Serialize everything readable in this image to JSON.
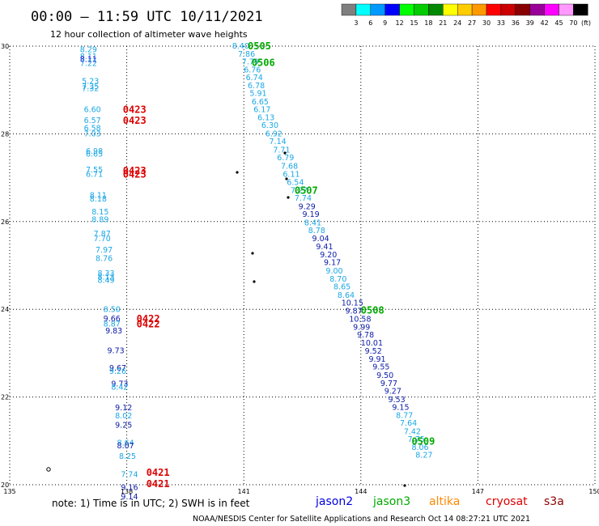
{
  "title": "00:00 – 11:59 UTC 10/11/2021",
  "subtitle": "12 hour collection of altimeter wave heights",
  "colorbar": {
    "labels": [
      "3",
      "6",
      "9",
      "12",
      "15",
      "18",
      "21",
      "24",
      "27",
      "30",
      "33",
      "36",
      "39",
      "42",
      "45",
      "70"
    ],
    "unit": "(ft)",
    "colors": [
      "#7f7f7f",
      "#00ffff",
      "#0099ff",
      "#0000ff",
      "#00ff00",
      "#00cc00",
      "#008800",
      "#ffff00",
      "#ffcc00",
      "#ff9900",
      "#ff0000",
      "#cc0000",
      "#880000",
      "#990099",
      "#ff00ff",
      "#ff99ff",
      "#000000"
    ]
  },
  "chart_data": {
    "type": "scatter",
    "title": "00:00 – 11:59 UTC 10/11/2021",
    "subtitle": "12 hour collection of altimeter wave heights",
    "xlim": [
      135,
      150
    ],
    "ylim": [
      20,
      30
    ],
    "x_ticks": [
      "135",
      "138",
      "141",
      "144",
      "147",
      "150"
    ],
    "y_ticks": [
      "20",
      "22",
      "24",
      "26",
      "28",
      "30"
    ],
    "grid": true,
    "level_colors": {
      "c6": "#1aa7e6",
      "c9": "#0a1aa8",
      "c12": "#0000dd"
    },
    "series": [
      {
        "name": "jason2",
        "color": "#0000dd",
        "points": []
      },
      {
        "name": "jason3",
        "color": "#00aa00",
        "passes": [
          {
            "label": "0505",
            "x": 141.1,
            "y": 30.0
          },
          {
            "label": "0506",
            "x": 141.2,
            "y": 29.62
          },
          {
            "label": "0507",
            "x": 142.3,
            "y": 26.71
          },
          {
            "label": "0508",
            "x": 144.0,
            "y": 23.98
          },
          {
            "label": "0509",
            "x": 145.3,
            "y": 20.99
          }
        ],
        "points": [
          {
            "x": 140.7,
            "y": 30.0,
            "v": "8.40",
            "c": "c6"
          },
          {
            "x": 140.85,
            "y": 29.82,
            "v": "7.86",
            "c": "c6"
          },
          {
            "x": 140.95,
            "y": 29.64,
            "v": "7.79",
            "c": "c6"
          },
          {
            "x": 141.0,
            "y": 29.46,
            "v": "6.76",
            "c": "c6"
          },
          {
            "x": 141.05,
            "y": 29.28,
            "v": "6.74",
            "c": "c6"
          },
          {
            "x": 141.1,
            "y": 29.1,
            "v": "6.78",
            "c": "c6"
          },
          {
            "x": 141.15,
            "y": 28.92,
            "v": "5.91",
            "c": "c6"
          },
          {
            "x": 141.2,
            "y": 28.73,
            "v": "6.65",
            "c": "c6"
          },
          {
            "x": 141.25,
            "y": 28.55,
            "v": "6.17",
            "c": "c6"
          },
          {
            "x": 141.35,
            "y": 28.37,
            "v": "6.13",
            "c": "c6"
          },
          {
            "x": 141.45,
            "y": 28.19,
            "v": "6.30",
            "c": "c6"
          },
          {
            "x": 141.55,
            "y": 28.0,
            "v": "6.92",
            "c": "c6"
          },
          {
            "x": 141.65,
            "y": 27.82,
            "v": "7.14",
            "c": "c6"
          },
          {
            "x": 141.75,
            "y": 27.63,
            "v": "7.71",
            "c": "c6"
          },
          {
            "x": 141.85,
            "y": 27.45,
            "v": "6.79",
            "c": "c6"
          },
          {
            "x": 141.95,
            "y": 27.26,
            "v": "7.68",
            "c": "c6"
          },
          {
            "x": 142.0,
            "y": 27.08,
            "v": "6.11",
            "c": "c6"
          },
          {
            "x": 142.1,
            "y": 26.89,
            "v": "6.54",
            "c": "c6"
          },
          {
            "x": 142.2,
            "y": 26.71,
            "v": "7.27",
            "c": "c6"
          },
          {
            "x": 142.3,
            "y": 26.53,
            "v": "7.74",
            "c": "c6"
          },
          {
            "x": 142.4,
            "y": 26.34,
            "v": "9.29",
            "c": "c9"
          },
          {
            "x": 142.5,
            "y": 26.16,
            "v": "9.19",
            "c": "c9"
          },
          {
            "x": 142.55,
            "y": 25.97,
            "v": "8.41",
            "c": "c6"
          },
          {
            "x": 142.65,
            "y": 25.79,
            "v": "8.78",
            "c": "c6"
          },
          {
            "x": 142.75,
            "y": 25.61,
            "v": "9.04",
            "c": "c9"
          },
          {
            "x": 142.85,
            "y": 25.42,
            "v": "9.41",
            "c": "c9"
          },
          {
            "x": 142.95,
            "y": 25.24,
            "v": "9.20",
            "c": "c9"
          },
          {
            "x": 143.05,
            "y": 25.06,
            "v": "9.17",
            "c": "c9"
          },
          {
            "x": 143.1,
            "y": 24.87,
            "v": "9.00",
            "c": "c6"
          },
          {
            "x": 143.2,
            "y": 24.69,
            "v": "8.70",
            "c": "c6"
          },
          {
            "x": 143.3,
            "y": 24.51,
            "v": "8.65",
            "c": "c6"
          },
          {
            "x": 143.4,
            "y": 24.32,
            "v": "8.64",
            "c": "c6"
          },
          {
            "x": 143.5,
            "y": 24.14,
            "v": "10.15",
            "c": "c9"
          },
          {
            "x": 143.6,
            "y": 23.96,
            "v": "9.87",
            "c": "c9"
          },
          {
            "x": 143.7,
            "y": 23.77,
            "v": "10.58",
            "c": "c9"
          },
          {
            "x": 143.8,
            "y": 23.59,
            "v": "9.99",
            "c": "c9"
          },
          {
            "x": 143.9,
            "y": 23.41,
            "v": "9.78",
            "c": "c9"
          },
          {
            "x": 144.0,
            "y": 23.23,
            "v": "10.01",
            "c": "c9"
          },
          {
            "x": 144.1,
            "y": 23.04,
            "v": "9.52",
            "c": "c9"
          },
          {
            "x": 144.2,
            "y": 22.86,
            "v": "9.91",
            "c": "c9"
          },
          {
            "x": 144.3,
            "y": 22.68,
            "v": "9.55",
            "c": "c9"
          },
          {
            "x": 144.4,
            "y": 22.49,
            "v": "9.50",
            "c": "c9"
          },
          {
            "x": 144.5,
            "y": 22.31,
            "v": "9.77",
            "c": "c9"
          },
          {
            "x": 144.6,
            "y": 22.13,
            "v": "9.27",
            "c": "c9"
          },
          {
            "x": 144.7,
            "y": 21.94,
            "v": "9.53",
            "c": "c9"
          },
          {
            "x": 144.8,
            "y": 21.76,
            "v": "9.15",
            "c": "c9"
          },
          {
            "x": 144.9,
            "y": 21.58,
            "v": "8.77",
            "c": "c6"
          },
          {
            "x": 145.0,
            "y": 21.4,
            "v": "7.64",
            "c": "c6"
          },
          {
            "x": 145.1,
            "y": 21.21,
            "v": "7.42",
            "c": "c6"
          },
          {
            "x": 145.2,
            "y": 21.03,
            "v": "7.75",
            "c": "c6"
          },
          {
            "x": 145.3,
            "y": 20.85,
            "v": "8.06",
            "c": "c6"
          },
          {
            "x": 145.4,
            "y": 20.67,
            "v": "8.27",
            "c": "c6"
          }
        ]
      },
      {
        "name": "altika",
        "color": "#ff8800",
        "points": []
      },
      {
        "name": "cryosat",
        "color": "#dd0000",
        "passes": [
          {
            "label": "0423",
            "x": 137.9,
            "y": 28.55
          },
          {
            "label": "0423",
            "x": 137.9,
            "y": 28.3
          },
          {
            "label": "0423",
            "x": 137.9,
            "y": 27.16
          },
          {
            "label": "0423",
            "x": 137.9,
            "y": 27.08
          },
          {
            "label": "0422",
            "x": 138.25,
            "y": 23.78
          },
          {
            "label": "0422",
            "x": 138.25,
            "y": 23.66
          },
          {
            "label": "0421",
            "x": 138.5,
            "y": 20.28
          },
          {
            "label": "0421",
            "x": 138.5,
            "y": 20.02
          }
        ],
        "points": [
          {
            "x": 136.8,
            "y": 29.92,
            "v": "8.29",
            "c": "c6"
          },
          {
            "x": 136.8,
            "y": 29.76,
            "v": "8.11",
            "c": "c6"
          },
          {
            "x": 136.8,
            "y": 29.7,
            "v": "8.11",
            "c": "c12"
          },
          {
            "x": 136.8,
            "y": 29.6,
            "v": "7.22",
            "c": "c6"
          },
          {
            "x": 136.85,
            "y": 29.2,
            "v": "5.23",
            "c": "c6"
          },
          {
            "x": 136.85,
            "y": 29.08,
            "v": "7.35",
            "c": "c6"
          },
          {
            "x": 136.85,
            "y": 29.03,
            "v": "7.32",
            "c": "c6"
          },
          {
            "x": 136.9,
            "y": 28.55,
            "v": "6.60",
            "c": "c6"
          },
          {
            "x": 136.9,
            "y": 28.3,
            "v": "6.57",
            "c": "c6"
          },
          {
            "x": 136.9,
            "y": 28.13,
            "v": "6.58",
            "c": "c6"
          },
          {
            "x": 136.9,
            "y": 28.0,
            "v": "7.03",
            "c": "c6"
          },
          {
            "x": 136.95,
            "y": 27.6,
            "v": "6.98",
            "c": "c6"
          },
          {
            "x": 136.95,
            "y": 27.54,
            "v": "6.65",
            "c": "c6"
          },
          {
            "x": 136.95,
            "y": 27.18,
            "v": "7.55",
            "c": "c6"
          },
          {
            "x": 136.95,
            "y": 27.08,
            "v": "6.71",
            "c": "c6"
          },
          {
            "x": 137.05,
            "y": 26.6,
            "v": "8.11",
            "c": "c6"
          },
          {
            "x": 137.05,
            "y": 26.51,
            "v": "8.18",
            "c": "c6"
          },
          {
            "x": 137.1,
            "y": 26.22,
            "v": "8.15",
            "c": "c6"
          },
          {
            "x": 137.1,
            "y": 26.04,
            "v": "8.89",
            "c": "c6"
          },
          {
            "x": 137.15,
            "y": 25.72,
            "v": "7.87",
            "c": "c6"
          },
          {
            "x": 137.15,
            "y": 25.61,
            "v": "7.70",
            "c": "c6"
          },
          {
            "x": 137.2,
            "y": 25.35,
            "v": "7.97",
            "c": "c6"
          },
          {
            "x": 137.2,
            "y": 25.16,
            "v": "8.76",
            "c": "c6"
          },
          {
            "x": 137.25,
            "y": 24.82,
            "v": "8.33",
            "c": "c6"
          },
          {
            "x": 137.25,
            "y": 24.73,
            "v": "8.13",
            "c": "c6"
          },
          {
            "x": 137.25,
            "y": 24.66,
            "v": "8.49",
            "c": "c6"
          },
          {
            "x": 137.4,
            "y": 23.99,
            "v": "8.50",
            "c": "c6"
          },
          {
            "x": 137.4,
            "y": 23.78,
            "v": "9.66",
            "c": "c9"
          },
          {
            "x": 137.4,
            "y": 23.66,
            "v": "8.87",
            "c": "c6"
          },
          {
            "x": 137.45,
            "y": 23.51,
            "v": "9.83",
            "c": "c9"
          },
          {
            "x": 137.5,
            "y": 23.05,
            "v": "9.73",
            "c": "c9"
          },
          {
            "x": 137.55,
            "y": 22.66,
            "v": "9.67",
            "c": "c9"
          },
          {
            "x": 137.55,
            "y": 22.58,
            "v": "9.26",
            "c": "c6"
          },
          {
            "x": 137.6,
            "y": 22.3,
            "v": "9.73",
            "c": "c9"
          },
          {
            "x": 137.6,
            "y": 22.22,
            "v": "8.42",
            "c": "c6"
          },
          {
            "x": 137.7,
            "y": 21.75,
            "v": "9.12",
            "c": "c9"
          },
          {
            "x": 137.7,
            "y": 21.57,
            "v": "8.02",
            "c": "c6"
          },
          {
            "x": 137.7,
            "y": 21.36,
            "v": "9.25",
            "c": "c9"
          },
          {
            "x": 137.75,
            "y": 20.95,
            "v": "8.64",
            "c": "c6"
          },
          {
            "x": 137.75,
            "y": 20.89,
            "v": "8.07",
            "c": "c9"
          },
          {
            "x": 137.8,
            "y": 20.65,
            "v": "8.25",
            "c": "c6"
          },
          {
            "x": 137.85,
            "y": 20.23,
            "v": "7.74",
            "c": "c6"
          },
          {
            "x": 137.85,
            "y": 19.94,
            "v": "9.16",
            "c": "c9"
          },
          {
            "x": 137.85,
            "y": 19.72,
            "v": "9.14",
            "c": "c9"
          }
        ]
      },
      {
        "name": "s3a",
        "color": "#880000",
        "points": []
      }
    ]
  },
  "note": "note:  1) Time is in UTC;  2) SWH is in feet",
  "credit": "NOAA/NESDIS Center for Satellite Applications and Research     Oct 14 08:27:21 UTC 2021"
}
